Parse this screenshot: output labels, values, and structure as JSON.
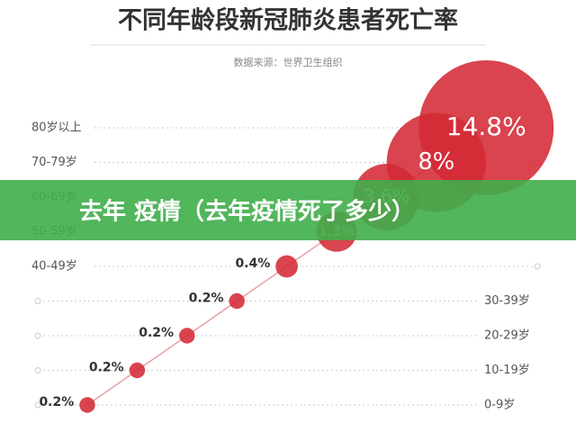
{
  "chart_data": {
    "type": "bubble",
    "title": "不同年龄段新冠肺炎患者死亡率",
    "subtitle": "数据来源：世界卫生组织",
    "categories": [
      "0-9岁",
      "10-19岁",
      "20-29岁",
      "30-39岁",
      "40-49岁",
      "50-59岁",
      "60-69岁",
      "70-79岁",
      "80岁以上"
    ],
    "values": [
      0.2,
      0.2,
      0.2,
      0.2,
      0.4,
      1.3,
      3.6,
      8,
      14.8
    ],
    "value_labels": [
      "0.2%",
      "0.2%",
      "0.2%",
      "0.2%",
      "0.4%",
      "1.3%",
      "3.6%",
      "8%",
      "14.8%"
    ],
    "color": "#d42a36"
  },
  "banner": {
    "text": "去年 疫情（去年疫情死了多少）"
  }
}
